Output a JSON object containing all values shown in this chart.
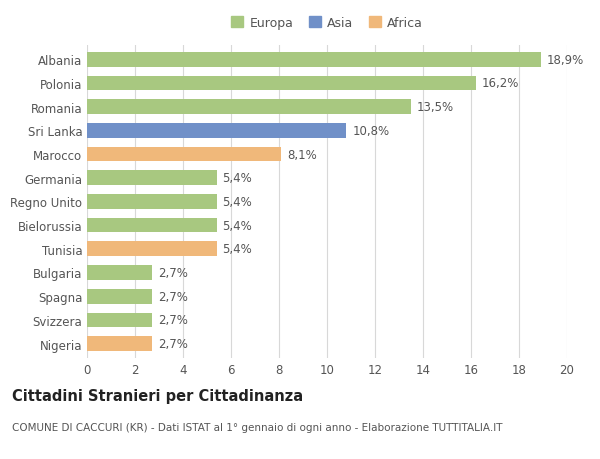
{
  "categories": [
    "Albania",
    "Polonia",
    "Romania",
    "Sri Lanka",
    "Marocco",
    "Germania",
    "Regno Unito",
    "Bielorussia",
    "Tunisia",
    "Bulgaria",
    "Spagna",
    "Svizzera",
    "Nigeria"
  ],
  "values": [
    18.9,
    16.2,
    13.5,
    10.8,
    8.1,
    5.4,
    5.4,
    5.4,
    5.4,
    2.7,
    2.7,
    2.7,
    2.7
  ],
  "labels": [
    "18,9%",
    "16,2%",
    "13,5%",
    "10,8%",
    "8,1%",
    "5,4%",
    "5,4%",
    "5,4%",
    "5,4%",
    "2,7%",
    "2,7%",
    "2,7%",
    "2,7%"
  ],
  "continents": [
    "Europa",
    "Europa",
    "Europa",
    "Asia",
    "Africa",
    "Europa",
    "Europa",
    "Europa",
    "Africa",
    "Europa",
    "Europa",
    "Europa",
    "Africa"
  ],
  "colors": {
    "Europa": "#a8c880",
    "Asia": "#7090c8",
    "Africa": "#f0b87a"
  },
  "legend_order": [
    "Europa",
    "Asia",
    "Africa"
  ],
  "xlim": [
    0,
    20
  ],
  "xticks": [
    0,
    2,
    4,
    6,
    8,
    10,
    12,
    14,
    16,
    18,
    20
  ],
  "title": "Cittadini Stranieri per Cittadinanza",
  "subtitle": "COMUNE DI CACCURI (KR) - Dati ISTAT al 1° gennaio di ogni anno - Elaborazione TUTTITALIA.IT",
  "background_color": "#ffffff",
  "grid_color": "#d8d8d8",
  "bar_height": 0.62,
  "label_fontsize": 8.5,
  "tick_fontsize": 8.5,
  "title_fontsize": 10.5,
  "subtitle_fontsize": 7.5,
  "legend_fontsize": 9
}
